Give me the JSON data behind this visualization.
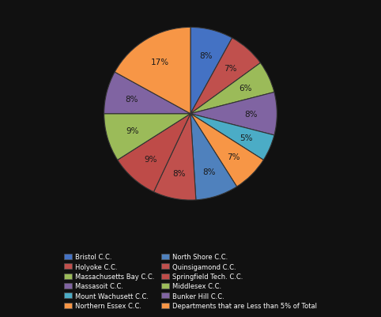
{
  "labels": [
    "Bristol C.C.",
    "Holyoke C.C.",
    "Massachusetts Bay C.C.",
    "Massasoit C.C.",
    "Mount Wachusett C.C.",
    "Northern Essex C.C.",
    "North Shore C.C.",
    "Quinsigamond C.C.",
    "Springfield Tech. C.C.",
    "Middlesex C.C.",
    "Bunker Hill C.C.",
    "Departments that are Less than 5% of Total"
  ],
  "values": [
    8,
    7,
    6,
    8,
    5,
    7,
    8,
    8,
    9,
    9,
    8,
    17
  ],
  "slice_colors": [
    "#4472C4",
    "#C0504D",
    "#9BBB59",
    "#8064A2",
    "#4BACC6",
    "#F79646",
    "#4472C4",
    "#C0504D",
    "#9BBB59",
    "#8064A2",
    "#4BACC6",
    "#F79646"
  ],
  "background_color": "#111111",
  "text_color": "#000000",
  "label_pct_color": "#000000",
  "figure_width": 4.82,
  "figure_height": 4.02,
  "dpi": 100
}
